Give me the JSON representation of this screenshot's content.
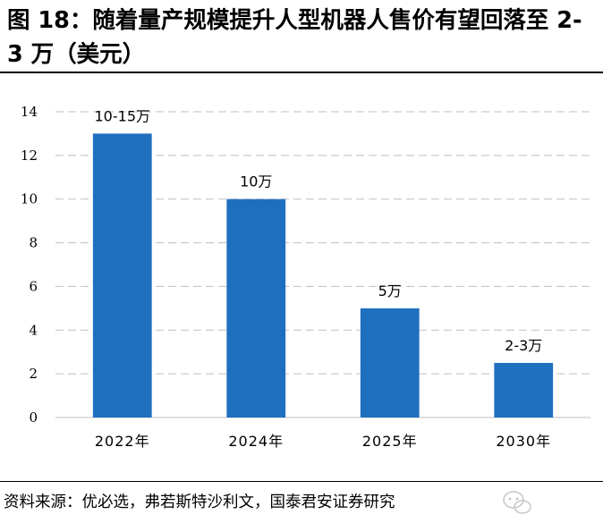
{
  "figure": {
    "title": "图 18：随着量产规模提升人型机器人售价有望回落至 2-3 万（美元）",
    "source": "资料来源：优必选，弗若斯特沙利文，国泰君安证券研究"
  },
  "chart_data": {
    "type": "bar",
    "categories": [
      "2022年",
      "2024年",
      "2025年",
      "2030年"
    ],
    "values": [
      13,
      10,
      5,
      2.5
    ],
    "data_labels": [
      "10-15万",
      "10万",
      "5万",
      "2-3万"
    ],
    "ylim": [
      0,
      14
    ],
    "yticks": [
      0,
      2,
      4,
      6,
      8,
      10,
      12,
      14
    ],
    "grid": true,
    "bar_color": "#1F6FBF",
    "grid_color": "#BFBFBF"
  },
  "watermark": {
    "icon": "wechat-icon"
  }
}
